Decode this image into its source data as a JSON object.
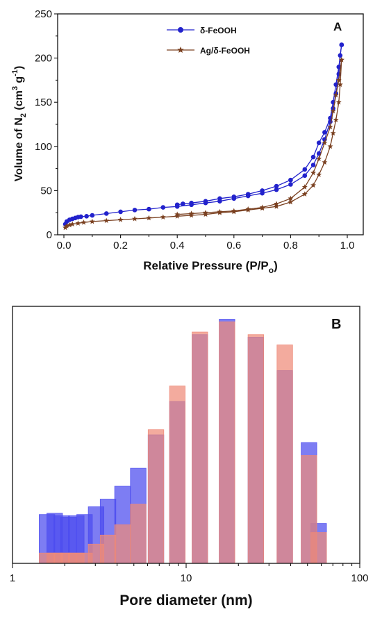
{
  "chart_data": [
    {
      "panel_label": "A",
      "type": "line",
      "xlabel": "Relative Pressure (P/P",
      "xlabel_sub": "o",
      "xlabel_end": ")",
      "ylabel_parts": {
        "a": "Volume of N",
        "sub": "2",
        "b": " (cm",
        "sup1": "3",
        "c": " g",
        "sup2": "-1",
        "d": ")"
      },
      "xlim": [
        0.0,
        1.0
      ],
      "ylim": [
        0,
        250
      ],
      "xticks": [
        "0.0",
        "0.2",
        "0.4",
        "0.6",
        "0.8",
        "1.0"
      ],
      "yticks": [
        "0",
        "50",
        "100",
        "150",
        "200",
        "250"
      ],
      "legend_position": "top-left",
      "series": [
        {
          "name": "δ-FeOOH",
          "color": "#2222cc",
          "marker": "circle",
          "adsorption": [
            [
              0.005,
              12
            ],
            [
              0.01,
              15
            ],
            [
              0.02,
              17
            ],
            [
              0.03,
              18
            ],
            [
              0.04,
              19
            ],
            [
              0.05,
              20
            ],
            [
              0.06,
              20.5
            ],
            [
              0.08,
              21
            ],
            [
              0.1,
              22
            ],
            [
              0.15,
              24
            ],
            [
              0.2,
              26
            ],
            [
              0.25,
              28
            ],
            [
              0.3,
              29
            ],
            [
              0.35,
              31
            ],
            [
              0.4,
              32
            ],
            [
              0.45,
              34
            ],
            [
              0.5,
              36
            ],
            [
              0.55,
              38
            ],
            [
              0.6,
              41
            ],
            [
              0.65,
              44
            ],
            [
              0.7,
              47
            ],
            [
              0.75,
              51
            ],
            [
              0.8,
              57
            ],
            [
              0.85,
              67
            ],
            [
              0.88,
              79
            ],
            [
              0.9,
              92
            ],
            [
              0.92,
              108
            ],
            [
              0.94,
              128
            ],
            [
              0.95,
              143
            ],
            [
              0.96,
              160
            ],
            [
              0.97,
              182
            ],
            [
              0.975,
              203
            ],
            [
              0.98,
              215
            ]
          ],
          "desorption": [
            [
              0.98,
              215
            ],
            [
              0.97,
              190
            ],
            [
              0.96,
              170
            ],
            [
              0.95,
              150
            ],
            [
              0.94,
              132
            ],
            [
              0.92,
              116
            ],
            [
              0.9,
              104
            ],
            [
              0.88,
              88
            ],
            [
              0.85,
              74
            ],
            [
              0.8,
              62
            ],
            [
              0.75,
              55
            ],
            [
              0.7,
              50
            ],
            [
              0.65,
              46
            ],
            [
              0.6,
              43
            ],
            [
              0.55,
              41
            ],
            [
              0.5,
              38
            ],
            [
              0.45,
              36
            ],
            [
              0.42,
              35
            ],
            [
              0.4,
              34
            ]
          ]
        },
        {
          "name": "Ag/δ-FeOOH",
          "color": "#7a4020",
          "marker": "star",
          "adsorption": [
            [
              0.005,
              8
            ],
            [
              0.01,
              10
            ],
            [
              0.02,
              11
            ],
            [
              0.03,
              12
            ],
            [
              0.05,
              13
            ],
            [
              0.07,
              14
            ],
            [
              0.1,
              15
            ],
            [
              0.15,
              16
            ],
            [
              0.2,
              17
            ],
            [
              0.25,
              18
            ],
            [
              0.3,
              19
            ],
            [
              0.35,
              20
            ],
            [
              0.4,
              21
            ],
            [
              0.45,
              22
            ],
            [
              0.5,
              23
            ],
            [
              0.55,
              25
            ],
            [
              0.6,
              26
            ],
            [
              0.65,
              28
            ],
            [
              0.7,
              30
            ],
            [
              0.75,
              32
            ],
            [
              0.8,
              37
            ],
            [
              0.85,
              46
            ],
            [
              0.88,
              56
            ],
            [
              0.9,
              68
            ],
            [
              0.92,
              82
            ],
            [
              0.94,
              100
            ],
            [
              0.95,
              115
            ],
            [
              0.96,
              130
            ],
            [
              0.97,
              150
            ],
            [
              0.975,
              170
            ],
            [
              0.98,
              198
            ]
          ],
          "desorption": [
            [
              0.98,
              198
            ],
            [
              0.97,
              175
            ],
            [
              0.96,
              158
            ],
            [
              0.95,
              140
            ],
            [
              0.94,
              122
            ],
            [
              0.92,
              104
            ],
            [
              0.9,
              86
            ],
            [
              0.88,
              70
            ],
            [
              0.85,
              54
            ],
            [
              0.8,
              41
            ],
            [
              0.75,
              35
            ],
            [
              0.7,
              31
            ],
            [
              0.65,
              29
            ],
            [
              0.6,
              27
            ],
            [
              0.55,
              26
            ],
            [
              0.5,
              25
            ],
            [
              0.45,
              24
            ],
            [
              0.4,
              23
            ]
          ]
        }
      ]
    },
    {
      "panel_label": "B",
      "type": "bar",
      "xlabel": "Pore diameter (nm)",
      "xscale": "log",
      "xlim": [
        1,
        100
      ],
      "xticks": [
        "1",
        "10",
        "100"
      ],
      "yticks_shown": false,
      "ylim": [
        0,
        1.0
      ],
      "series": [
        {
          "name": "",
          "color": "#4b4bef",
          "bars": [
            {
              "x": 1.58,
              "value": 0.19
            },
            {
              "x": 1.75,
              "value": 0.195
            },
            {
              "x": 1.92,
              "value": 0.185
            },
            {
              "x": 2.1,
              "value": 0.18
            },
            {
              "x": 2.33,
              "value": 0.185
            },
            {
              "x": 2.6,
              "value": 0.19
            },
            {
              "x": 3.03,
              "value": 0.22
            },
            {
              "x": 3.55,
              "value": 0.25
            },
            {
              "x": 4.3,
              "value": 0.3
            },
            {
              "x": 5.3,
              "value": 0.37
            },
            {
              "x": 6.7,
              "value": 0.5
            },
            {
              "x": 8.9,
              "value": 0.63
            },
            {
              "x": 12.0,
              "value": 0.89
            },
            {
              "x": 17.2,
              "value": 0.95
            },
            {
              "x": 25.2,
              "value": 0.88
            },
            {
              "x": 37.0,
              "value": 0.75
            },
            {
              "x": 51.0,
              "value": 0.47
            },
            {
              "x": 58.0,
              "value": 0.155
            }
          ]
        },
        {
          "name": "",
          "color": "#ee8a78",
          "bars": [
            {
              "x": 1.58,
              "value": 0.04
            },
            {
              "x": 1.75,
              "value": 0.04
            },
            {
              "x": 1.92,
              "value": 0.04
            },
            {
              "x": 2.1,
              "value": 0.04
            },
            {
              "x": 2.33,
              "value": 0.04
            },
            {
              "x": 2.6,
              "value": 0.04
            },
            {
              "x": 3.03,
              "value": 0.075
            },
            {
              "x": 3.55,
              "value": 0.11
            },
            {
              "x": 4.3,
              "value": 0.15
            },
            {
              "x": 5.3,
              "value": 0.23
            },
            {
              "x": 6.7,
              "value": 0.52
            },
            {
              "x": 8.9,
              "value": 0.69
            },
            {
              "x": 12.0,
              "value": 0.9
            },
            {
              "x": 17.2,
              "value": 0.94
            },
            {
              "x": 25.2,
              "value": 0.89
            },
            {
              "x": 37.0,
              "value": 0.85
            },
            {
              "x": 51.0,
              "value": 0.42
            },
            {
              "x": 58.0,
              "value": 0.12
            }
          ]
        }
      ]
    }
  ]
}
